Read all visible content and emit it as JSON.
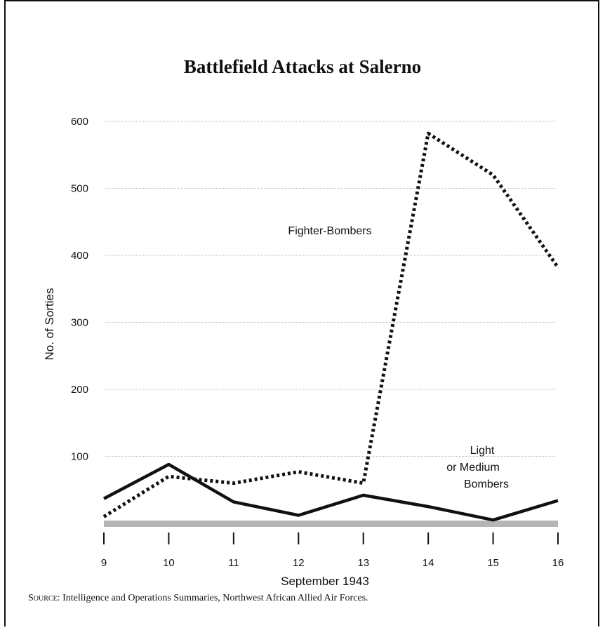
{
  "chart_data": {
    "type": "line",
    "title": "Battlefield Attacks at Salerno",
    "xlabel": "September 1943",
    "ylabel": "No. of Sorties",
    "x": [
      9,
      10,
      11,
      12,
      13,
      14,
      15,
      16
    ],
    "xlim": [
      9,
      16
    ],
    "ylim": [
      0,
      600
    ],
    "yticks": [
      100,
      200,
      300,
      400,
      500,
      600
    ],
    "grid": true,
    "series": [
      {
        "name": "Fighter-Bombers",
        "style": "dotted",
        "values": [
          10,
          70,
          60,
          77,
          60,
          582,
          520,
          382
        ],
        "color": "#111111"
      },
      {
        "name": "Light or Medium Bombers",
        "style": "solid",
        "values": [
          37,
          88,
          32,
          12,
          42,
          25,
          5,
          34
        ],
        "color": "#111111"
      }
    ],
    "annotations": [
      {
        "text": "Fighter-Bombers"
      },
      {
        "lines": [
          "Light",
          "or Medium",
          "Bombers"
        ]
      }
    ]
  },
  "source": {
    "label": "Source:",
    "text": "Intelligence and Operations Summaries, Northwest African Allied Air Forces."
  }
}
